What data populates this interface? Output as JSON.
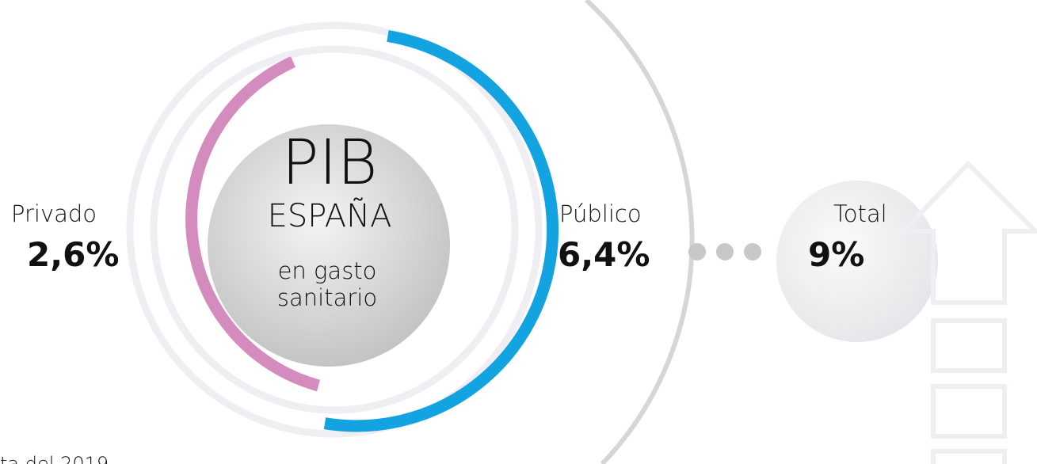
{
  "center": {
    "title": "PIB",
    "subtitle": "ESPAÑA",
    "caption": [
      "en gasto",
      "sanitario"
    ]
  },
  "items": [
    {
      "label": "Privado",
      "value": "2,6%"
    },
    {
      "label": "Público",
      "value": "6,4%"
    },
    {
      "label": "Total",
      "value": "9%"
    }
  ],
  "footnote": "ta del 2019"
}
